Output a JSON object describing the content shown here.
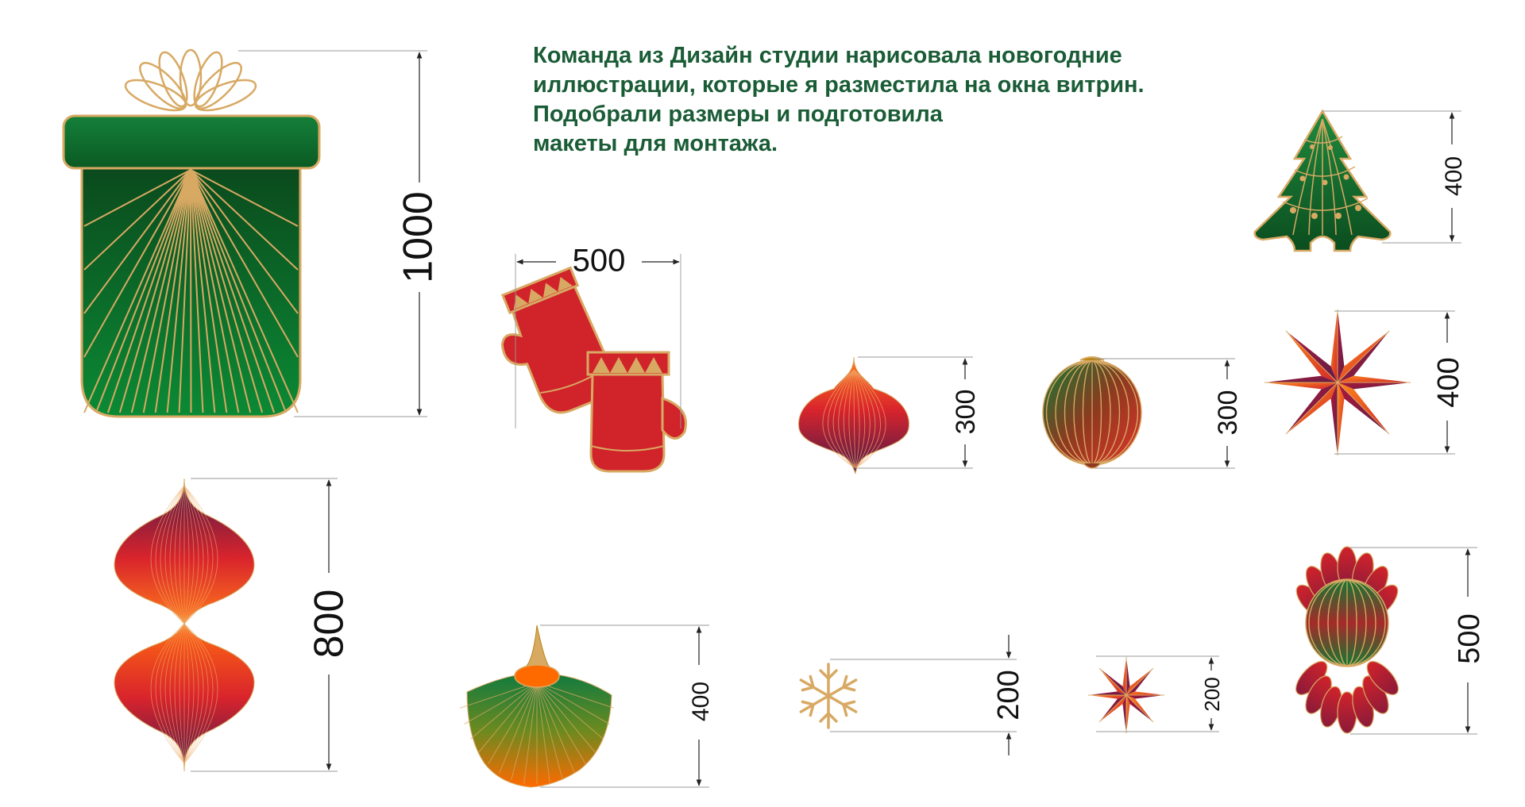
{
  "caption": {
    "lines": [
      "Команда из Дизайн студии нарисовала новогодние",
      "иллюстрации, которые я разместила на окна витрин.",
      "Подобрали размеры и подготовила",
      "макеты для монтажа."
    ]
  },
  "dimensions": {
    "gift_box": "1000",
    "mittens": "500",
    "onion_bauble": "300",
    "round_bauble": "300",
    "christmas_tree": "400",
    "big_star": "400",
    "double_ornament": "800",
    "fan_ornament": "400",
    "snowflake": "200",
    "small_star": "200",
    "candy": "500"
  },
  "colors": {
    "text_green": "#1a5c36",
    "box_green": "#0f6b2c",
    "dark_green": "#0b4d1f",
    "red": "#d1232a",
    "orange": "#ff6a00",
    "purple": "#5c1d48",
    "gold": "#d8a963"
  }
}
